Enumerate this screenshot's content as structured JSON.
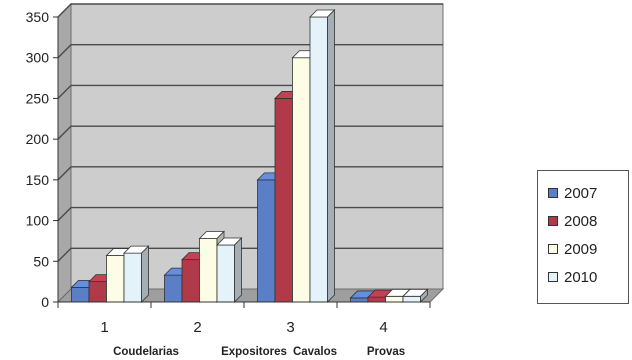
{
  "chart_data": {
    "type": "bar",
    "title": "",
    "xlabel": "",
    "ylabel": "",
    "ylim": [
      0,
      350
    ],
    "yticks": [
      "0",
      "50",
      "100",
      "150",
      "200",
      "250",
      "300",
      "350"
    ],
    "categories": [
      "1",
      "2",
      "3",
      "4"
    ],
    "category_names": [
      "Coudelarias",
      "Expositores",
      "Cavalos",
      "Provas"
    ],
    "grid": true,
    "style": "3d-clustered",
    "legend_position": "right",
    "series": [
      {
        "name": "2007",
        "color": "#5b7fc7",
        "values": [
          18,
          33,
          150,
          5
        ]
      },
      {
        "name": "2008",
        "color": "#b03a48",
        "values": [
          25,
          52,
          250,
          6
        ]
      },
      {
        "name": "2009",
        "color": "#fdfde6",
        "values": [
          57,
          78,
          300,
          7
        ]
      },
      {
        "name": "2010",
        "color": "#e4f2fa",
        "values": [
          60,
          70,
          350,
          7
        ]
      }
    ],
    "plot_background": "#cdcdcd",
    "gridline_color": "#4a4a4a"
  }
}
